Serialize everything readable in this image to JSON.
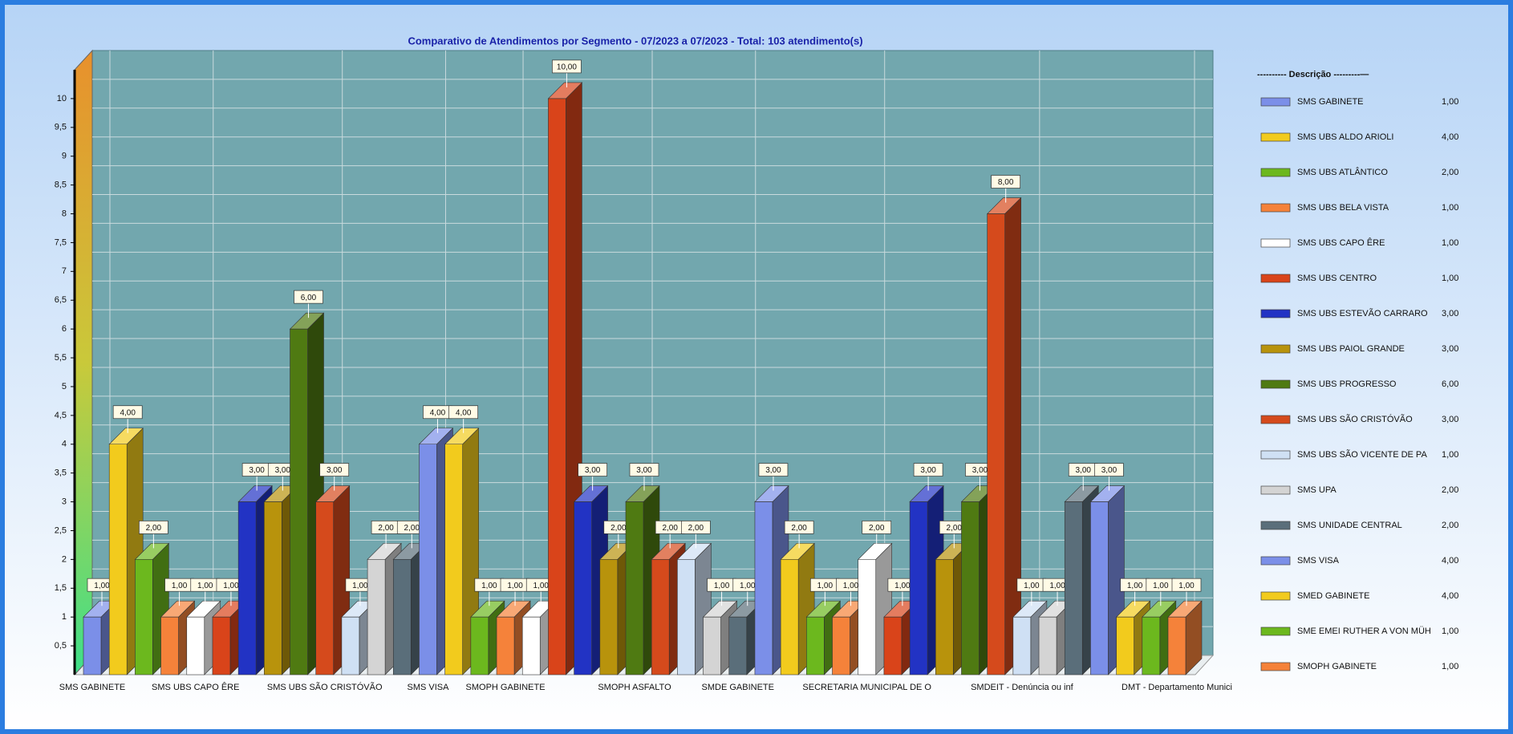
{
  "chart_data": {
    "type": "bar3d",
    "title": "Comparativo  de  Atendimentos  por  Segmento  -  07/2023  a  07/2023  -  Total:  103  atendimento(s)",
    "categories": [
      "SMS GABINETE",
      null,
      null,
      null,
      "SMS UBS CAPO ÊRE",
      null,
      null,
      null,
      null,
      "SMS UBS SÃO CRISTÓVÃO",
      null,
      null,
      null,
      "SMS VISA",
      null,
      null,
      "SMOPH GABINETE",
      null,
      null,
      null,
      null,
      "SMOPH ASFALTO",
      null,
      null,
      null,
      "SMDE GABINETE",
      null,
      null,
      null,
      null,
      "SECRETARIA MUNICIPAL DE O",
      null,
      null,
      null,
      null,
      null,
      "SMDEIT - Denúncia ou inf",
      null,
      null,
      null,
      null,
      null,
      "DMT - Departamento Munici"
    ],
    "values": [
      1,
      4,
      2,
      1,
      1,
      1,
      3,
      3,
      6,
      3,
      1,
      2,
      2,
      4,
      4,
      1,
      1,
      1,
      10,
      3,
      2,
      3,
      2,
      2,
      1,
      1,
      3,
      2,
      1,
      1,
      2,
      1,
      3,
      2,
      3,
      8,
      1,
      1,
      3,
      3,
      1,
      1,
      1
    ],
    "value_labels": [
      "1,00",
      "4,00",
      "2,00",
      "1,00",
      "1,00",
      "1,00",
      "3,00",
      "3,00",
      "6,00",
      "3,00",
      "1,00",
      "2,00",
      "2,00",
      "4,00",
      "4,00",
      "1,00",
      "1,00",
      "1,00",
      "10,00",
      "3,00",
      "2,00",
      "3,00",
      "2,00",
      "2,00",
      "1,00",
      "1,00",
      "3,00",
      "2,00",
      "1,00",
      "1,00",
      "2,00",
      "1,00",
      "3,00",
      "2,00",
      "3,00",
      "8,00",
      "1,00",
      "1,00",
      "3,00",
      "3,00",
      "1,00",
      "1,00",
      "1,00"
    ],
    "colors": [
      "#7b8fe8",
      "#f2cb1d",
      "#6cb81e",
      "#f5823a",
      "#ffffff",
      "#d9441a",
      "#2233c4",
      "#b8930c",
      "#4f7a12",
      "#d54a1c",
      "#cfe0f4",
      "#d4d4d4",
      "#5a6e7a",
      "#7b8fe8",
      "#f2cb1d",
      "#6cb81e",
      "#f5823a",
      "#ffffff",
      "#d9441a",
      "#2233c4",
      "#b8930c",
      "#4f7a12",
      "#d54a1c",
      "#cfe0f4",
      "#d4d4d4",
      "#5a6e7a",
      "#7b8fe8",
      "#f2cb1d",
      "#6cb81e",
      "#f5823a",
      "#ffffff",
      "#d9441a",
      "#2233c4",
      "#b8930c",
      "#4f7a12",
      "#d54a1c",
      "#cfe0f4",
      "#d4d4d4",
      "#5a6e7a",
      "#7b8fe8",
      "#f2cb1d",
      "#6cb81e",
      "#f5823a"
    ],
    "ylim": [
      0,
      10.5
    ],
    "yticks": [
      {
        "value": 0.5,
        "label": "0,5"
      },
      1,
      {
        "value": 1.5,
        "label": "1,5"
      },
      2,
      {
        "value": 2.5,
        "label": "2,5"
      },
      3,
      {
        "value": 3.5,
        "label": "3,5"
      },
      4,
      {
        "value": 4.5,
        "label": "4,5"
      },
      5,
      {
        "value": 5.5,
        "label": "5,5"
      },
      6,
      {
        "value": 6.5,
        "label": "6,5"
      },
      7,
      {
        "value": 7.5,
        "label": "7,5"
      },
      8,
      {
        "value": 8.5,
        "label": "8,5"
      },
      9,
      {
        "value": 9.5,
        "label": "9,5"
      },
      10
    ],
    "grid": true,
    "legend": {
      "title": "---------- Descrição ---------—",
      "items": [
        {
          "name": "SMS GABINETE",
          "color": "#7b8fe8",
          "value": 1,
          "value_label": "1,00"
        },
        {
          "name": "SMS UBS ALDO ARIOLI",
          "color": "#f2cb1d",
          "value": 4,
          "value_label": "4,00"
        },
        {
          "name": "SMS UBS ATLÂNTICO",
          "color": "#6cb81e",
          "value": 2,
          "value_label": "2,00"
        },
        {
          "name": "SMS UBS BELA VISTA",
          "color": "#f5823a",
          "value": 1,
          "value_label": "1,00"
        },
        {
          "name": "SMS UBS CAPO ÊRE",
          "color": "#ffffff",
          "value": 1,
          "value_label": "1,00"
        },
        {
          "name": "SMS UBS CENTRO",
          "color": "#d9441a",
          "value": 1,
          "value_label": "1,00"
        },
        {
          "name": "SMS UBS ESTEVÃO CARRARO",
          "color": "#2233c4",
          "value": 3,
          "value_label": "3,00"
        },
        {
          "name": "SMS UBS PAIOL GRANDE",
          "color": "#b8930c",
          "value": 3,
          "value_label": "3,00"
        },
        {
          "name": "SMS UBS PROGRESSO",
          "color": "#4f7a12",
          "value": 6,
          "value_label": "6,00"
        },
        {
          "name": "SMS UBS SÃO CRISTÓVÃO",
          "color": "#d54a1c",
          "value": 3,
          "value_label": "3,00"
        },
        {
          "name": "SMS UBS SÃO VICENTE DE PA",
          "color": "#cfe0f4",
          "value": 1,
          "value_label": "1,00"
        },
        {
          "name": "SMS UPA",
          "color": "#d4d4d4",
          "value": 2,
          "value_label": "2,00"
        },
        {
          "name": "SMS UNIDADE CENTRAL",
          "color": "#5a6e7a",
          "value": 2,
          "value_label": "2,00"
        },
        {
          "name": "SMS VISA",
          "color": "#7b8fe8",
          "value": 4,
          "value_label": "4,00"
        },
        {
          "name": "SMED GABINETE",
          "color": "#f2cb1d",
          "value": 4,
          "value_label": "4,00"
        },
        {
          "name": "SME EMEI RUTHER A VON MÜH",
          "color": "#6cb81e",
          "value": 1,
          "value_label": "1,00"
        },
        {
          "name": "SMOPH GABINETE",
          "color": "#f5823a",
          "value": 1,
          "value_label": "1,00"
        }
      ]
    }
  }
}
